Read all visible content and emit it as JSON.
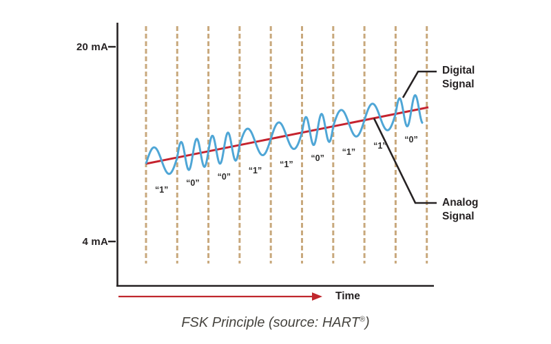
{
  "colors": {
    "axis": "#262223",
    "text": "#262223",
    "grid_dashed": "#c8a87c",
    "digital_wave": "#4fa6d6",
    "analog_line": "#c5232e",
    "time_arrow": "#c0272d",
    "pointer_line": "#262223",
    "caption_text": "#46443f",
    "background": "#ffffff"
  },
  "y_axis": {
    "top_label": "20 mA",
    "bottom_label": "4 mA"
  },
  "x_axis": {
    "label": "Time"
  },
  "annotations": {
    "digital_signal": "Digital Signal",
    "analog_signal": "Analog Signal"
  },
  "caption": {
    "pre": "FSK Principle (source: HART",
    "registered": "®",
    "post": ")",
    "full": "FSK Principle (source: HART®)"
  },
  "chart_data": {
    "type": "line",
    "title": "FSK Principle (source: HART®)",
    "xlabel": "Time",
    "ylabel": "",
    "y_tick_labels": [
      "20 mA",
      "4 mA"
    ],
    "grid": "vertical dashed bit-period boundaries",
    "bits": [
      "1",
      "0",
      "0",
      "1",
      "1",
      "0",
      "1",
      "1",
      "0"
    ],
    "bit_label_quote_open": "“",
    "bit_label_quote_close": "”",
    "cycles_per_bit": {
      "1": 1,
      "0": 2
    },
    "series": [
      {
        "name": "Digital Signal",
        "shape": "FSK sine wave riding on rising analog current, low frequency = 1, high frequency = 0",
        "color": "#4fa6d6"
      },
      {
        "name": "Analog Signal",
        "shape": "straight rising 4-20 mA current line",
        "color": "#c5232e"
      }
    ],
    "legend_position": "right-side annotations with pointer lines"
  }
}
